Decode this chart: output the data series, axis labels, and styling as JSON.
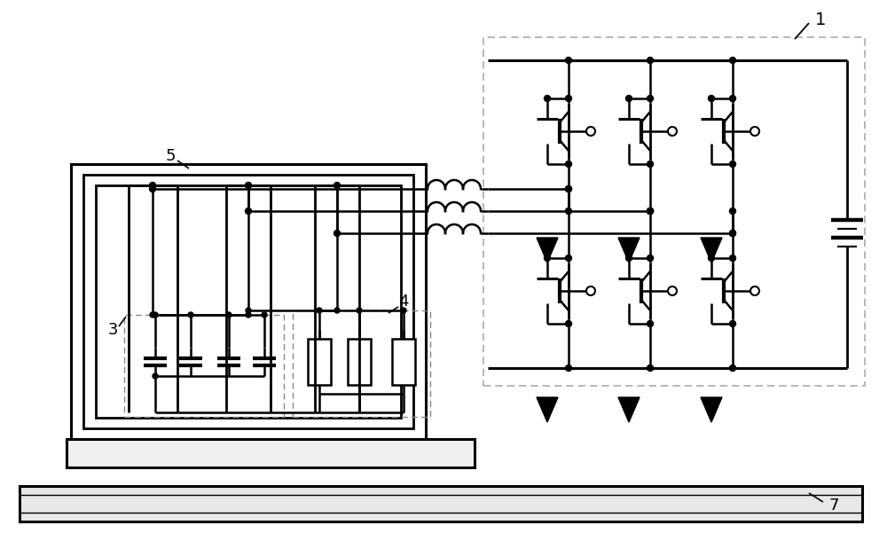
{
  "bg_color": "#ffffff",
  "lc": "#000000",
  "dc": "#aaaaaa",
  "label_1": "1",
  "label_3": "3",
  "label_4": "4",
  "label_5": "5",
  "label_7": "7",
  "fig_width": 10.0,
  "fig_height": 6.1,
  "dpi": 100
}
